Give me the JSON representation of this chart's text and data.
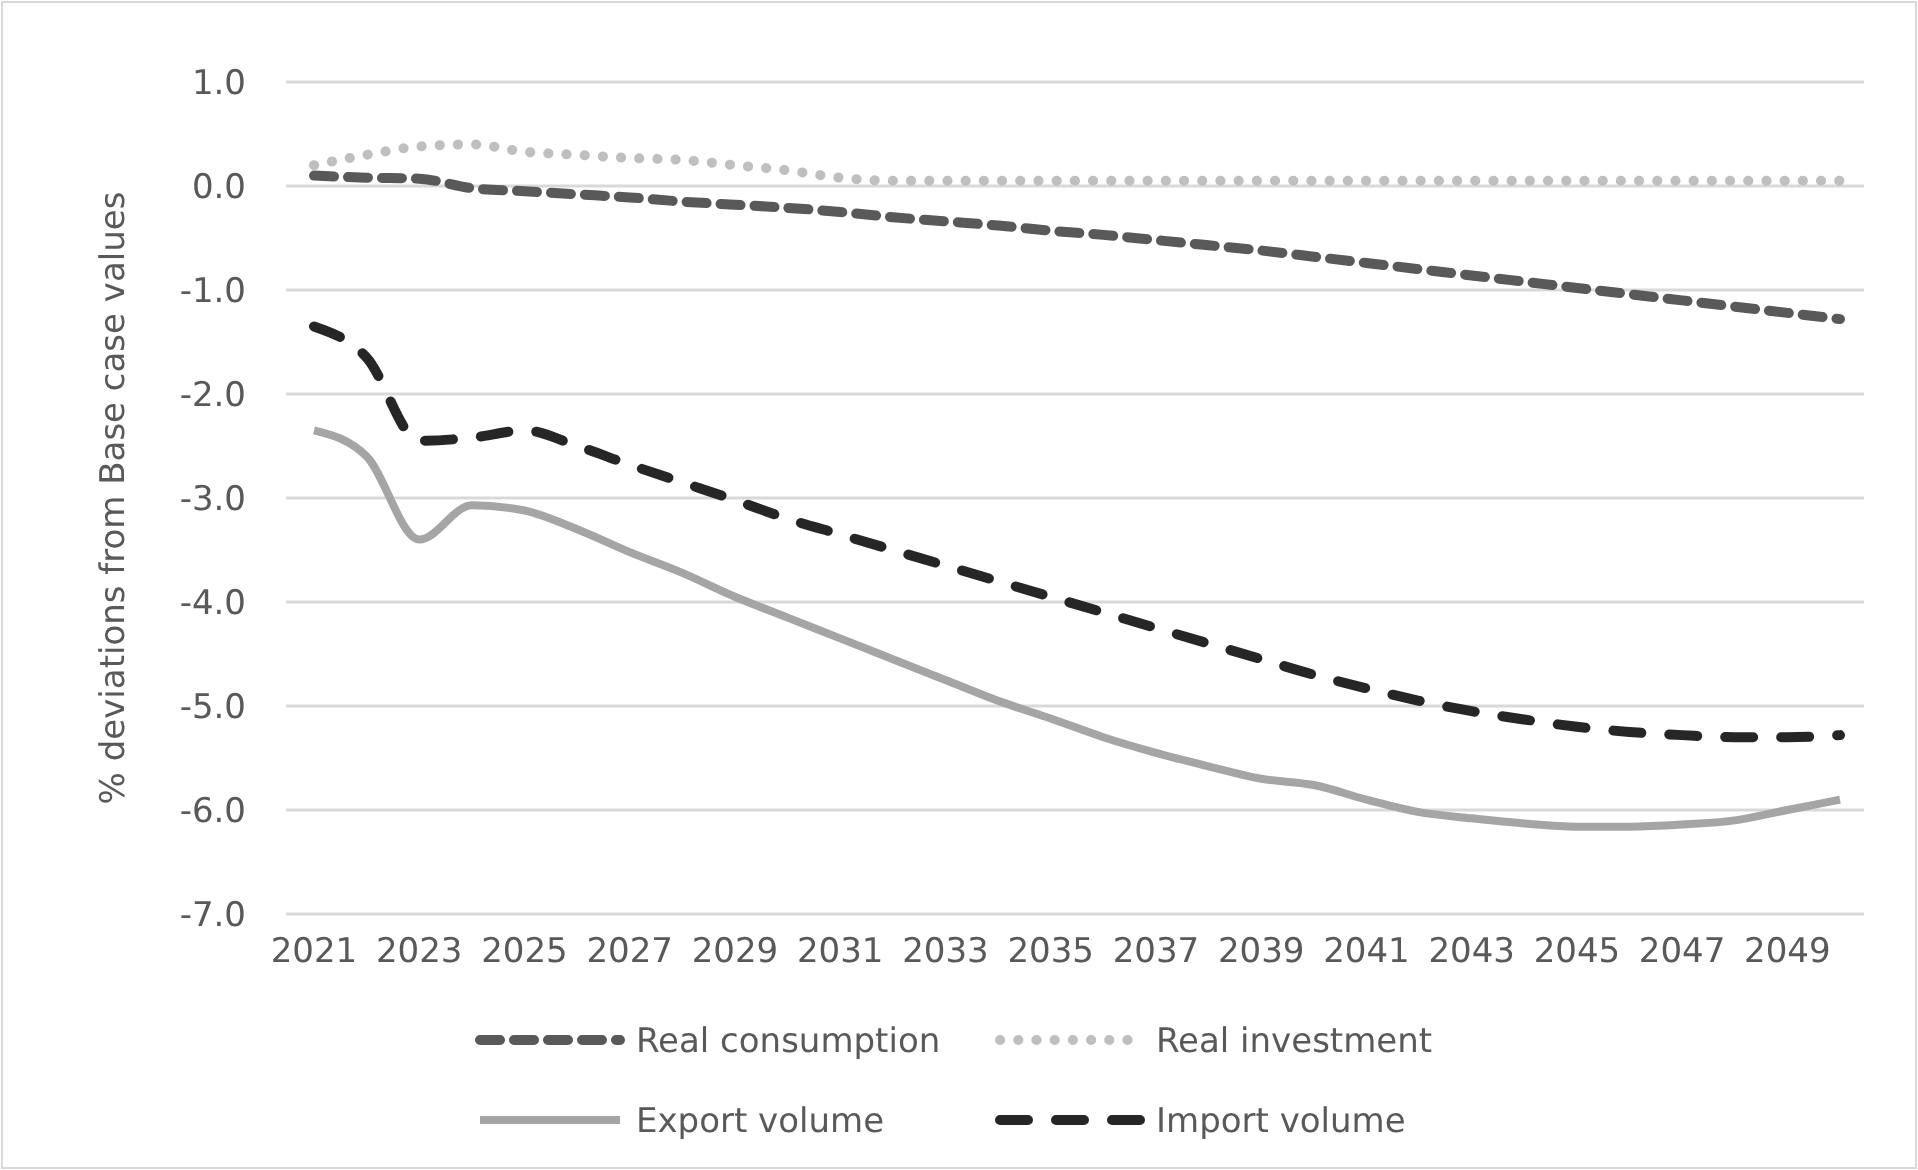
{
  "chart_data": {
    "type": "line",
    "ylabel": "% deviations from Base case values",
    "categories": [
      "2021",
      null,
      "2023",
      null,
      "2025",
      null,
      "2027",
      null,
      "2029",
      null,
      "2031",
      null,
      "2033",
      null,
      "2035",
      null,
      "2037",
      null,
      "2039",
      null,
      "2041",
      null,
      "2043",
      null,
      "2045",
      null,
      "2047",
      null,
      "2049",
      null
    ],
    "ylim": [
      -7,
      1
    ],
    "yticks": [
      {
        "value": -7,
        "label": "-7.0"
      },
      {
        "value": -6,
        "label": "-6.0"
      },
      {
        "value": -5,
        "label": "-5.0"
      },
      {
        "value": -4,
        "label": "-4.0"
      },
      {
        "value": -3,
        "label": "-3.0"
      },
      {
        "value": -2,
        "label": "-2.0"
      },
      {
        "value": -1,
        "label": "-1.0"
      },
      {
        "value": 0,
        "label": "0.0"
      },
      {
        "value": 1,
        "label": "1.0"
      }
    ],
    "grid": "y",
    "legend": "bottom",
    "series": [
      {
        "name": "Real consumption",
        "color": "#595959",
        "line_style": "dashed",
        "values": [
          0.1,
          0.08,
          0.07,
          -0.02,
          -0.05,
          -0.08,
          -0.11,
          -0.15,
          -0.18,
          -0.21,
          -0.25,
          -0.3,
          -0.34,
          -0.38,
          -0.43,
          -0.47,
          -0.52,
          -0.57,
          -0.62,
          -0.68,
          -0.74,
          -0.8,
          -0.86,
          -0.92,
          -0.98,
          -1.04,
          -1.1,
          -1.16,
          -1.22,
          -1.28
        ]
      },
      {
        "name": "Real investment",
        "color": "#bfbfbf",
        "line_style": "dotted",
        "values": [
          0.2,
          0.3,
          0.38,
          0.4,
          0.33,
          0.3,
          0.27,
          0.25,
          0.2,
          0.15,
          0.08,
          0.05,
          0.05,
          0.05,
          0.05,
          0.05,
          0.05,
          0.05,
          0.05,
          0.05,
          0.05,
          0.05,
          0.05,
          0.05,
          0.05,
          0.05,
          0.05,
          0.05,
          0.05,
          0.05
        ]
      },
      {
        "name": "Export volume",
        "color": "#a5a5a5",
        "line_style": "solid",
        "values": [
          -2.35,
          -2.6,
          -3.4,
          -3.07,
          -3.12,
          -3.3,
          -3.52,
          -3.72,
          -3.95,
          -4.15,
          -4.35,
          -4.55,
          -4.75,
          -4.95,
          -5.12,
          -5.3,
          -5.45,
          -5.58,
          -5.7,
          -5.76,
          -5.9,
          -6.02,
          -6.08,
          -6.13,
          -6.16,
          -6.16,
          -6.14,
          -6.1,
          -6.0,
          -5.9
        ]
      },
      {
        "name": "Import volume",
        "color": "#262626",
        "line_style": "dashed",
        "values": [
          -1.35,
          -1.65,
          -2.45,
          -2.42,
          -2.35,
          -2.5,
          -2.68,
          -2.85,
          -3.02,
          -3.2,
          -3.35,
          -3.5,
          -3.65,
          -3.8,
          -3.95,
          -4.1,
          -4.25,
          -4.4,
          -4.55,
          -4.7,
          -4.83,
          -4.95,
          -5.05,
          -5.13,
          -5.2,
          -5.25,
          -5.28,
          -5.3,
          -5.3,
          -5.28
        ]
      }
    ]
  }
}
